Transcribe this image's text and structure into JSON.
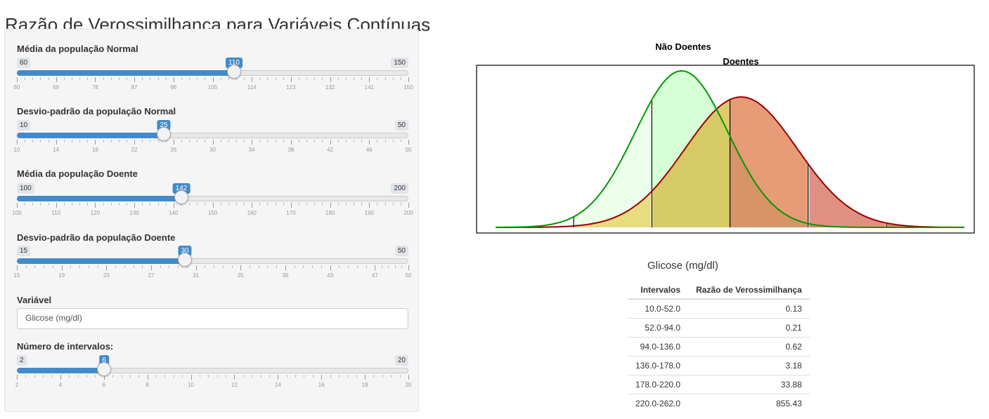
{
  "page": {
    "title": "Razão de Verossimilhança para Variáveis Contínuas"
  },
  "controls": {
    "sliders": [
      {
        "key": "media_normal",
        "label": "Média da população Normal",
        "min": 60,
        "max": 150,
        "value": 110,
        "ticks": [
          "60",
          "69",
          "78",
          "87",
          "96",
          "105",
          "114",
          "123",
          "132",
          "141",
          "150"
        ]
      },
      {
        "key": "dp_normal",
        "label": "Desvio-padrão da população Normal",
        "min": 10,
        "max": 50,
        "value": 25,
        "ticks": [
          "10",
          "14",
          "18",
          "22",
          "26",
          "30",
          "34",
          "38",
          "42",
          "46",
          "50"
        ]
      },
      {
        "key": "media_doente",
        "label": "Média da população Doente",
        "min": 100,
        "max": 200,
        "value": 142,
        "ticks": [
          "100",
          "110",
          "120",
          "130",
          "140",
          "150",
          "160",
          "170",
          "180",
          "190",
          "200"
        ]
      },
      {
        "key": "dp_doente",
        "label": "Desvio-padrão da população Doente",
        "min": 15,
        "max": 50,
        "value": 30,
        "ticks": [
          "15",
          "19",
          "23",
          "27",
          "31",
          "35",
          "39",
          "43",
          "47",
          "50"
        ]
      }
    ],
    "variavel": {
      "label": "Variável",
      "value": "Glicose (mg/dl)"
    },
    "intervalos": {
      "label": "Número de intervalos:",
      "min": 2,
      "max": 20,
      "value": 6,
      "ticks": [
        "2",
        "4",
        "6",
        "8",
        "10",
        "12",
        "14",
        "16",
        "18",
        "20"
      ]
    }
  },
  "chart_data": {
    "type": "area",
    "legend": [
      "Não Doentes",
      "Doentes"
    ],
    "xlabel": "Glicose (mg/dl)",
    "xlim": [
      10,
      262
    ],
    "series": [
      {
        "name": "Não Doentes",
        "mean": 110,
        "sd": 25,
        "color": "#009900",
        "fill": "#ccffcc"
      },
      {
        "name": "Doentes",
        "mean": 142,
        "sd": 30,
        "color": "#990000",
        "fill": "#f0a070"
      }
    ],
    "breaks": [
      10,
      52,
      94,
      136,
      178,
      220,
      262
    ],
    "grid": false
  },
  "table": {
    "headers": [
      "Intervalos",
      "Razão de Verossimilhança"
    ],
    "rows": [
      [
        "10.0-52.0",
        "0.13"
      ],
      [
        "52.0-94.0",
        "0.21"
      ],
      [
        "94.0-136.0",
        "0.62"
      ],
      [
        "136.0-178.0",
        "3.18"
      ],
      [
        "178.0-220.0",
        "33.88"
      ],
      [
        "220.0-262.0",
        "855.43"
      ]
    ]
  },
  "colors": {
    "accent": "#428bca",
    "normal_line": "#009900",
    "doente_line": "#990000"
  }
}
